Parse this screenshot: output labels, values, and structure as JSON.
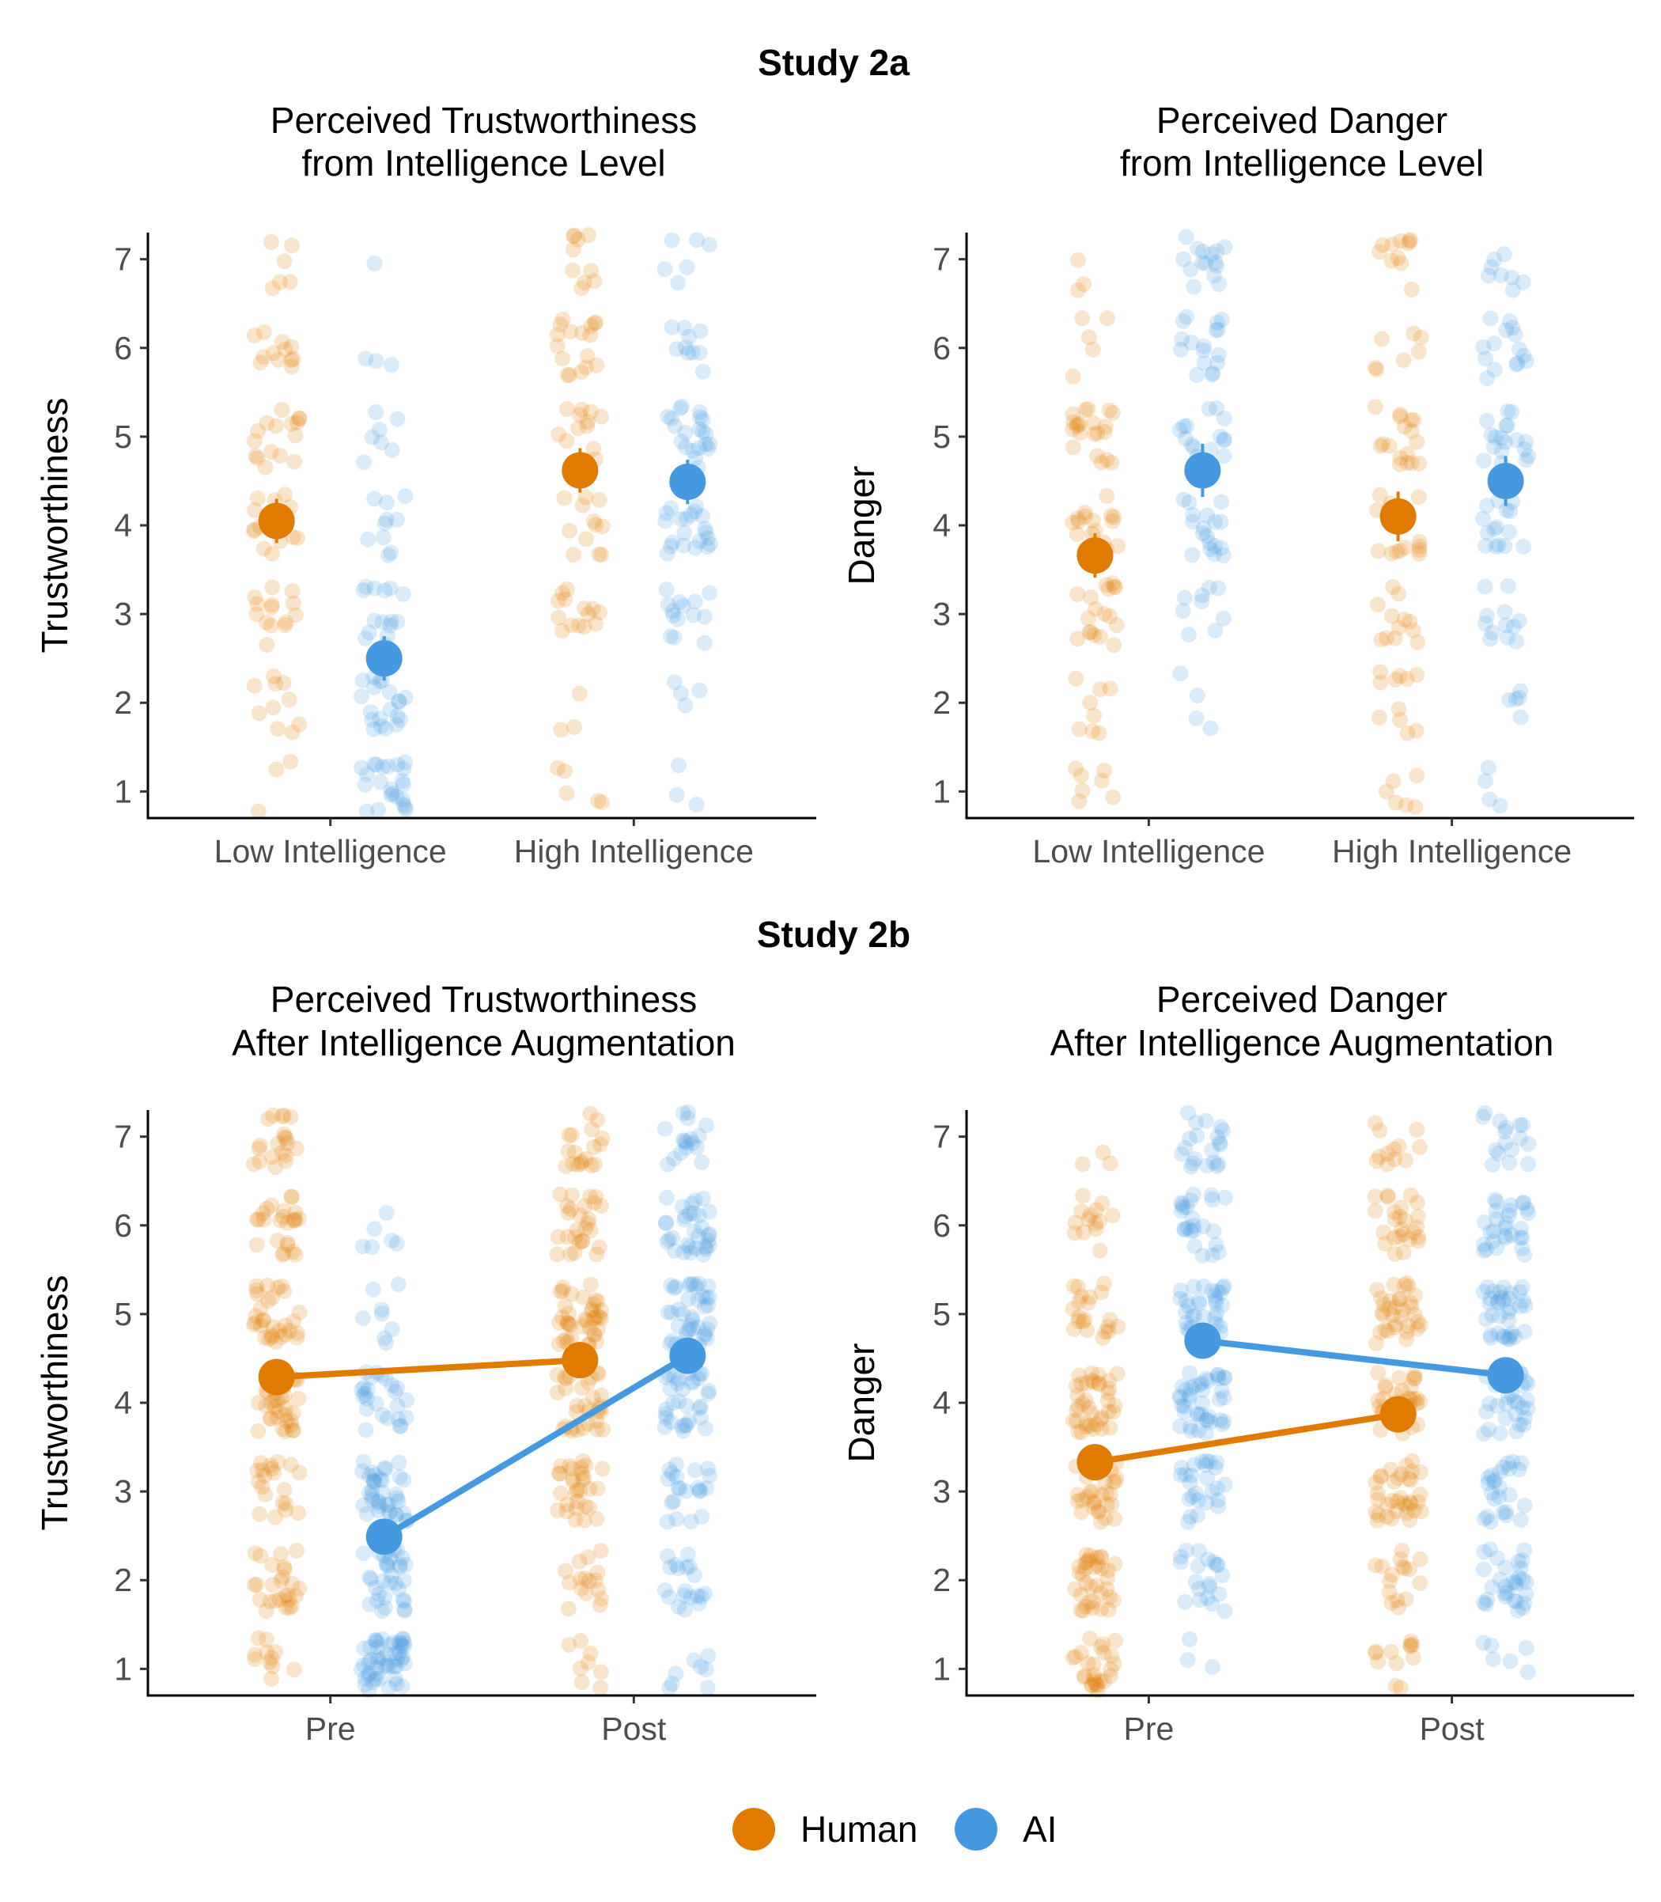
{
  "colors": {
    "human": "#E07B00",
    "ai": "#4499E0"
  },
  "studies": [
    {
      "title": "Study 2a"
    },
    {
      "title": "Study 2b"
    }
  ],
  "legend": {
    "items": [
      {
        "label": "Human",
        "series": "human"
      },
      {
        "label": "AI",
        "series": "ai"
      }
    ]
  },
  "chart_data": [
    {
      "type": "scatter",
      "title_line1": "Perceived Trustworthiness",
      "title_line2": "from Intelligence Level",
      "ylabel": "Trustworthiness",
      "categories": [
        "Low Intelligence",
        "High Intelligence"
      ],
      "yticks": [
        1,
        2,
        3,
        4,
        5,
        6,
        7
      ],
      "ylim": [
        0.7,
        7.3
      ],
      "connected": false,
      "series": [
        {
          "key": "human",
          "name": "Human",
          "means": [
            4.05,
            4.62
          ],
          "ci": [
            0.25,
            0.25
          ]
        },
        {
          "key": "ai",
          "name": "AI",
          "means": [
            2.5,
            4.49
          ],
          "ci": [
            0.25,
            0.25
          ]
        }
      ]
    },
    {
      "type": "scatter",
      "title_line1": "Perceived Danger",
      "title_line2": "from Intelligence Level",
      "ylabel": "Danger",
      "categories": [
        "Low Intelligence",
        "High Intelligence"
      ],
      "yticks": [
        1,
        2,
        3,
        4,
        5,
        6,
        7
      ],
      "ylim": [
        0.7,
        7.3
      ],
      "connected": false,
      "series": [
        {
          "key": "human",
          "name": "Human",
          "means": [
            3.66,
            4.1
          ],
          "ci": [
            0.25,
            0.28
          ]
        },
        {
          "key": "ai",
          "name": "AI",
          "means": [
            4.62,
            4.5
          ],
          "ci": [
            0.3,
            0.28
          ]
        }
      ]
    },
    {
      "type": "line",
      "title_line1": "Perceived Trustworthiness",
      "title_line2": "After Intelligence Augmentation",
      "ylabel": "Trustworthiness",
      "categories": [
        "Pre",
        "Post"
      ],
      "yticks": [
        1,
        2,
        3,
        4,
        5,
        6,
        7
      ],
      "ylim": [
        0.7,
        7.3
      ],
      "connected": true,
      "series": [
        {
          "key": "human",
          "name": "Human",
          "means": [
            4.29,
            4.48
          ],
          "ci": [
            0.12,
            0.12
          ]
        },
        {
          "key": "ai",
          "name": "AI",
          "means": [
            2.49,
            4.53
          ],
          "ci": [
            0.15,
            0.15
          ]
        }
      ]
    },
    {
      "type": "line",
      "title_line1": "Perceived Danger",
      "title_line2": "After Intelligence Augmentation",
      "ylabel": "Danger",
      "categories": [
        "Pre",
        "Post"
      ],
      "yticks": [
        1,
        2,
        3,
        4,
        5,
        6,
        7
      ],
      "ylim": [
        0.7,
        7.3
      ],
      "connected": true,
      "series": [
        {
          "key": "human",
          "name": "Human",
          "means": [
            3.33,
            3.87
          ],
          "ci": [
            0.13,
            0.13
          ]
        },
        {
          "key": "ai",
          "name": "AI",
          "means": [
            4.7,
            4.31
          ],
          "ci": [
            0.2,
            0.2
          ]
        }
      ]
    }
  ]
}
